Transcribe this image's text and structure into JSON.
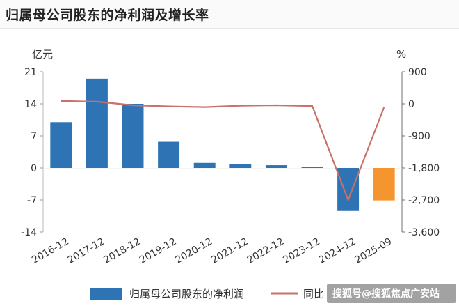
{
  "header": {
    "title": "归属母公司股东的净利润及增长率"
  },
  "chart_data": {
    "type": "bar",
    "title": "归属母公司股东的净利润及增长率",
    "categories": [
      "2016-12",
      "2017-12",
      "2018-12",
      "2019-12",
      "2020-12",
      "2021-12",
      "2022-12",
      "2023-12",
      "2024-12",
      "2025-09"
    ],
    "series": [
      {
        "name": "归属母公司股东的净利润",
        "axis": "left",
        "type": "bar",
        "values": [
          10,
          19.5,
          14,
          5.7,
          1.1,
          0.8,
          0.6,
          0.3,
          -9.4,
          -7.1
        ],
        "colors": [
          "#2e74b5",
          "#2e74b5",
          "#2e74b5",
          "#2e74b5",
          "#2e74b5",
          "#2e74b5",
          "#2e74b5",
          "#2e74b5",
          "#2e74b5",
          "#f5952f"
        ]
      },
      {
        "name": "同比",
        "axis": "right",
        "type": "line",
        "color": "#c9706a",
        "values": [
          80,
          60,
          -40,
          -70,
          -90,
          -50,
          -40,
          -60,
          -2700,
          -100
        ]
      }
    ],
    "left_axis": {
      "unit": "亿元",
      "ticks": [
        21,
        14,
        7,
        0,
        -7,
        -14
      ],
      "ylim": [
        -14,
        21
      ]
    },
    "right_axis": {
      "unit": "%",
      "ticks": [
        "900",
        "0",
        "-900",
        "-1,800",
        "-2,700",
        "-3,600"
      ],
      "ylim": [
        -3600,
        900
      ]
    },
    "legend": {
      "position": "bottom"
    }
  },
  "watermark": {
    "text": "搜狐号@搜狐焦点广安站"
  }
}
